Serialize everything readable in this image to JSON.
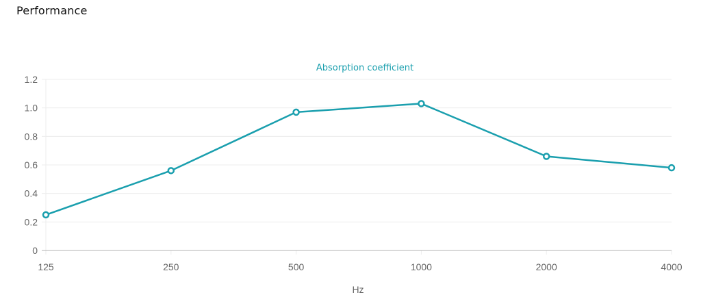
{
  "page": {
    "section_title": "Performance"
  },
  "colors": {
    "series": "#1a9fae",
    "grid": "#ececec",
    "axis": "#b3b3b3",
    "tick_text": "#666666"
  },
  "chart_data": {
    "type": "line",
    "title": "",
    "xlabel": "Hz",
    "ylabel": "",
    "categories": [
      "125",
      "250",
      "500",
      "1000",
      "2000",
      "4000"
    ],
    "series": [
      {
        "name": "Absorption coefficient",
        "values": [
          0.25,
          0.56,
          0.97,
          1.03,
          0.66,
          0.58
        ]
      }
    ],
    "ylim": [
      0,
      1.2
    ],
    "yticks": [
      "0",
      "0.2",
      "0.4",
      "0.6",
      "0.8",
      "1.0",
      "1.2"
    ],
    "grid": true,
    "legend_position": "top-center"
  }
}
